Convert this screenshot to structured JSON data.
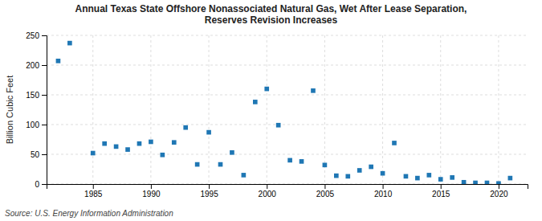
{
  "chart_data": {
    "type": "scatter",
    "title": "Annual Texas State Offshore Nonassociated Natural Gas, Wet After Lease Separation,\nReserves Revision Increases",
    "ylabel": "Billion Cubic Feet",
    "annotations": [
      "Source: U.S. Energy Information Administration"
    ],
    "x": [
      1982,
      1983,
      1985,
      1986,
      1987,
      1988,
      1989,
      1990,
      1991,
      1992,
      1993,
      1994,
      1995,
      1996,
      1997,
      1998,
      1999,
      2000,
      2001,
      2002,
      2003,
      2004,
      2005,
      2006,
      2007,
      2008,
      2009,
      2010,
      2011,
      2012,
      2013,
      2014,
      2015,
      2016,
      2017,
      2018,
      2019,
      2020,
      2021
    ],
    "values": [
      207,
      237,
      52,
      68,
      63,
      58,
      68,
      71,
      49,
      70,
      95,
      33,
      87,
      33,
      53,
      15,
      138,
      160,
      99,
      40,
      38,
      157,
      32,
      14,
      13,
      23,
      29,
      18,
      69,
      13,
      10,
      15,
      8,
      11,
      3,
      2,
      2,
      1,
      10
    ],
    "xlim": [
      1981,
      2022.5
    ],
    "xticks": [
      1985,
      1990,
      1995,
      2000,
      2005,
      2010,
      2015,
      2020
    ],
    "ylim": [
      0,
      250
    ],
    "yticks": [
      0,
      50,
      100,
      150,
      200,
      250
    ],
    "marker": "square",
    "grid": true
  }
}
